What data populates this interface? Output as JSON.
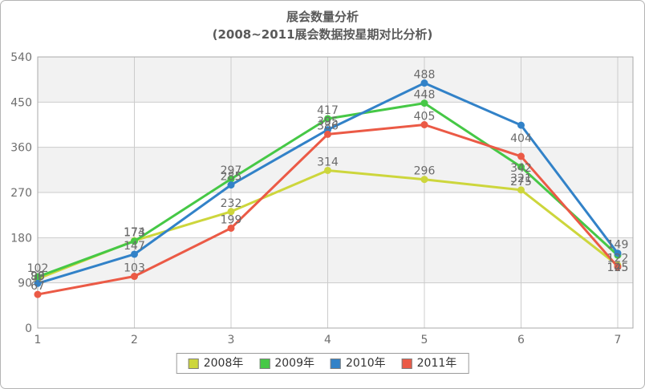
{
  "chart_data": {
    "type": "line",
    "title": "展会数量分析",
    "subtitle": "(2008~2011展会数据按星期对比分析)",
    "categories": [
      "1",
      "2",
      "3",
      "4",
      "5",
      "6",
      "7"
    ],
    "xlabel": "",
    "ylabel": "",
    "ylim": [
      0,
      540
    ],
    "ytick_step": 90,
    "yticks": [
      0,
      90,
      180,
      270,
      360,
      450,
      540
    ],
    "grid": true,
    "legend_position": "bottom",
    "series": [
      {
        "name": "2008年",
        "color": "#cdd63c",
        "values": [
          98,
          174,
          232,
          314,
          296,
          275,
          125
        ],
        "label_dy": [
          -4,
          -11,
          -11,
          -11,
          -11,
          -11,
          2
        ]
      },
      {
        "name": "2009年",
        "color": "#46c846",
        "values": [
          102,
          173,
          297,
          417,
          448,
          321,
          145
        ],
        "label_dy": [
          -11,
          -11,
          -11,
          -11,
          -11,
          14,
          15
        ]
      },
      {
        "name": "2010年",
        "color": "#3282c8",
        "values": [
          89,
          147,
          285,
          395,
          488,
          404,
          149
        ],
        "label_dy": [
          -9,
          -11,
          -11,
          -11,
          -11,
          16,
          -11
        ]
      },
      {
        "name": "2011年",
        "color": "#eb5a46",
        "values": [
          67,
          103,
          199,
          386,
          405,
          342,
          122
        ],
        "label_dy": [
          -11,
          -11,
          -11,
          -11,
          -11,
          14,
          -11
        ]
      }
    ],
    "colors": {
      "band": "#f2f2f2",
      "grid": "#cccccc",
      "plot_border": "#aaaaaa",
      "data_label": "#6a6a6a",
      "axis_text": "#6e6e6e",
      "title_text": "#5a5a5a"
    }
  }
}
